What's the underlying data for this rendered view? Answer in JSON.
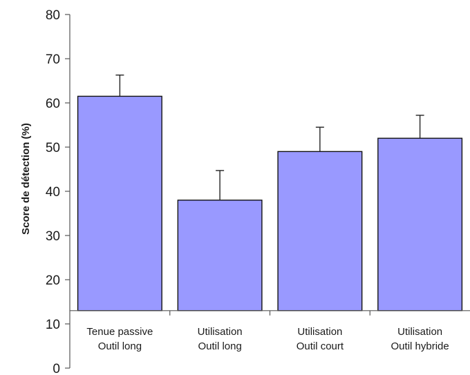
{
  "chart_data": {
    "type": "bar",
    "title": "",
    "xlabel": "",
    "ylabel": "Score de détection (%)",
    "ylim": [
      0,
      80
    ],
    "yticks": [
      0,
      10,
      20,
      30,
      40,
      50,
      60,
      70,
      80
    ],
    "baseline": 13,
    "grid": false,
    "bar_color": "#9999ff",
    "categories": [
      [
        "Tenue passive",
        "Outil long"
      ],
      [
        "Utilisation",
        "Outil long"
      ],
      [
        "Utilisation",
        "Outil court"
      ],
      [
        "Utilisation",
        "Outil hybride"
      ]
    ],
    "values": [
      61.5,
      38,
      49,
      52
    ],
    "error_upper": [
      4.8,
      6.7,
      5.5,
      5.2
    ]
  }
}
